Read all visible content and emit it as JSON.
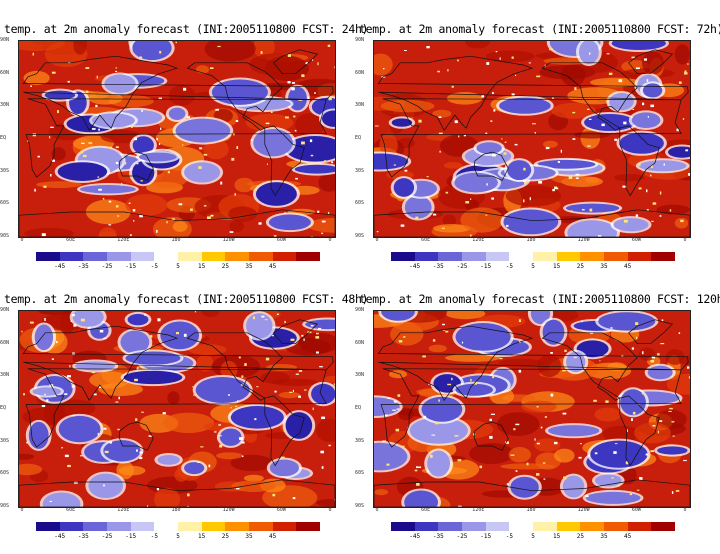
{
  "panels": [
    {
      "title": "temp. at 2m anomaly forecast (INI:2005110800 FCST: 24h)",
      "seed": 11
    },
    {
      "title": "temp. at 2m anomaly forecast (INI:2005110800 FCST: 72h)",
      "seed": 37
    },
    {
      "title": "temp. at 2m anomaly forecast (INI:2005110800 FCST: 48h)",
      "seed": 59
    },
    {
      "title": "temp. at 2m anomaly forecast (INI:2005110800 FCST: 120h)",
      "seed": 83
    }
  ],
  "lat_labels": [
    "90N",
    "60N",
    "30N",
    "EQ",
    "30S",
    "60S",
    "90S"
  ],
  "lon_labels": [
    "0",
    "60E",
    "120E",
    "180",
    "120W",
    "60W",
    "0"
  ],
  "colorbar": {
    "labels": [
      "-45",
      "-35",
      "-25",
      "-15",
      "-5",
      "5",
      "15",
      "25",
      "35",
      "45"
    ],
    "colors": [
      "#1a0a8c",
      "#3d36c0",
      "#6a66d8",
      "#9a96e8",
      "#c8c6f4",
      "#ffffff",
      "#fff2a8",
      "#ffc800",
      "#ff9000",
      "#f05a00",
      "#d02000",
      "#a00000"
    ]
  }
}
